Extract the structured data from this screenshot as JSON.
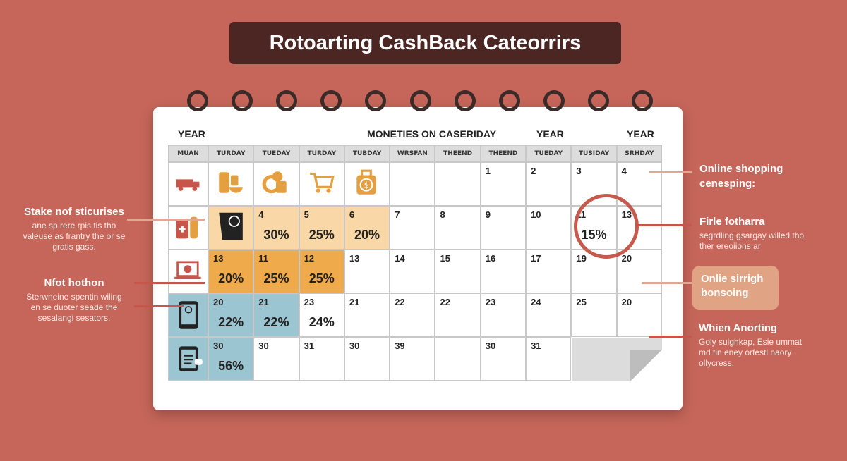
{
  "title": "Rotoarting CashBack Cateorrirs",
  "year_labels": [
    "YEAR",
    "MONETIES ON CASERIDAY",
    "YEAR",
    "YEAR"
  ],
  "headers": [
    "MUAN",
    "TURDAY",
    "TUEDAY",
    "TURDAY",
    "TUBDAY",
    "WRSFAN",
    "THEEND",
    "THEEND",
    "TUEDAY",
    "TUSIDAY",
    "SRHDAY"
  ],
  "colors": {
    "light": "#fad7a6",
    "orange": "#efaa4c",
    "blue": "#9cc5d2",
    "white": "#ffffff"
  },
  "rows": [
    {
      "icon": "truck-icon",
      "iconColor": "white",
      "cells": [
        {
          "icon": "jars-icon"
        },
        {
          "icon": "coins-icon"
        },
        {
          "icon": "cart-icon"
        },
        {
          "icon": "money-bag-icon"
        },
        {},
        {},
        {
          "day": "1"
        },
        {
          "day": "2"
        },
        {
          "day": "3"
        },
        {
          "day": "4"
        }
      ]
    },
    {
      "icon": "medicine-icon",
      "iconColor": "white",
      "cells": [
        {
          "icon": "phone-icon",
          "color": "light"
        },
        {
          "day": "4",
          "pct": "30%",
          "color": "light"
        },
        {
          "day": "5",
          "pct": "25%",
          "color": "light"
        },
        {
          "day": "6",
          "pct": "20%",
          "color": "light"
        },
        {
          "day": "7"
        },
        {
          "day": "8"
        },
        {
          "day": "9"
        },
        {
          "day": "10"
        },
        {
          "day": "11",
          "pct": "15%"
        },
        {
          "day": "13"
        }
      ]
    },
    {
      "icon": "laptop-icon",
      "iconColor": "white",
      "cells": [
        {
          "day": "13",
          "pct": "20%",
          "color": "orange"
        },
        {
          "day": "11",
          "pct": "25%",
          "color": "orange"
        },
        {
          "day": "12",
          "pct": "25%",
          "color": "orange"
        },
        {
          "day": "13"
        },
        {
          "day": "14"
        },
        {
          "day": "15"
        },
        {
          "day": "16"
        },
        {
          "day": "17"
        },
        {
          "day": "19"
        },
        {
          "day": "20"
        }
      ]
    },
    {
      "icon": "tablet-icon",
      "iconColor": "blue",
      "cells": [
        {
          "day": "20",
          "pct": "22%",
          "color": "blue"
        },
        {
          "day": "21",
          "pct": "22%",
          "color": "blue"
        },
        {
          "day": "23",
          "pct": "24%"
        },
        {
          "day": "21"
        },
        {
          "day": "22"
        },
        {
          "day": "22"
        },
        {
          "day": "23"
        },
        {
          "day": "24"
        },
        {
          "day": "25"
        },
        {
          "day": "20"
        }
      ]
    },
    {
      "icon": "document-icon",
      "iconColor": "blue",
      "cells": [
        {
          "day": "30",
          "pct": "56%",
          "color": "blue"
        },
        {
          "day": "30"
        },
        {
          "day": "31"
        },
        {
          "day": "30"
        },
        {
          "day": "39"
        },
        {},
        {
          "day": "30"
        },
        {
          "day": "31"
        },
        {
          "curl": true
        },
        {
          "curl": true
        }
      ]
    }
  ],
  "left": [
    {
      "title": "Stake nof sticurises",
      "body": "ane sp rere rpis tis tho valeuse as frantry the or se gratis gass."
    },
    {
      "title": "Nfot hothon",
      "body": "Sterwneine spentin wiling en se duoter seade the sesalangi sesators."
    }
  ],
  "right": [
    {
      "title": "Online shopping cenesping:"
    },
    {
      "title": "Firle fotharra",
      "body": "segrdling gsargay willed tho ther ereoiions ar"
    },
    {
      "title": "Onlie sirrigh bonsoing"
    },
    {
      "title": "Whien Anorting",
      "body": "Goly suighkap, Esie ummat md tin eney orfestl naory ollycress."
    }
  ]
}
